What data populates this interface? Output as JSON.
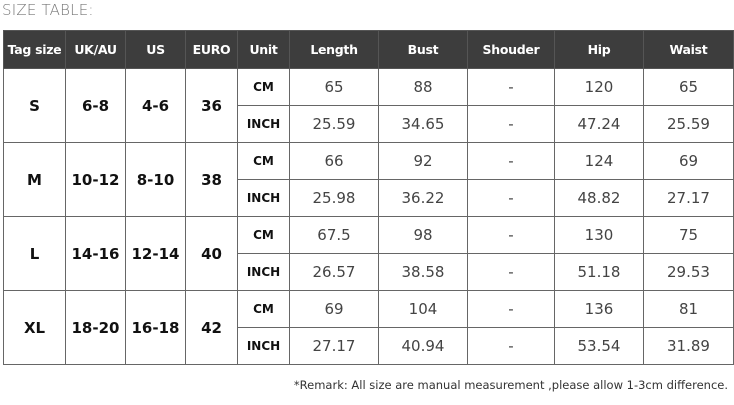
{
  "title": "SIZE TABLE:",
  "header_bg": "#3d3d3d",
  "headers": [
    "Tag size",
    "UK/AU",
    "US",
    "EURO",
    "Unit",
    "Length",
    "Bust",
    "Shouder",
    "Hip",
    "Waist"
  ],
  "rows": [
    {
      "tag": "S",
      "uk": "6-8",
      "us": "4-6",
      "euro": "36",
      "cm": {
        "unit": "CM",
        "length": "65",
        "bust": "88",
        "shoulder": "-",
        "hip": "120",
        "waist": "65"
      },
      "inch": {
        "unit": "INCH",
        "length": "25.59",
        "bust": "34.65",
        "shoulder": "-",
        "hip": "47.24",
        "waist": "25.59"
      }
    },
    {
      "tag": "M",
      "uk": "10-12",
      "us": "8-10",
      "euro": "38",
      "cm": {
        "unit": "CM",
        "length": "66",
        "bust": "92",
        "shoulder": "-",
        "hip": "124",
        "waist": "69"
      },
      "inch": {
        "unit": "INCH",
        "length": "25.98",
        "bust": "36.22",
        "shoulder": "-",
        "hip": "48.82",
        "waist": "27.17"
      }
    },
    {
      "tag": "L",
      "uk": "14-16",
      "us": "12-14",
      "euro": "40",
      "cm": {
        "unit": "CM",
        "length": "67.5",
        "bust": "98",
        "shoulder": "-",
        "hip": "130",
        "waist": "75"
      },
      "inch": {
        "unit": "INCH",
        "length": "26.57",
        "bust": "38.58",
        "shoulder": "-",
        "hip": "51.18",
        "waist": "29.53"
      }
    },
    {
      "tag": "XL",
      "uk": "18-20",
      "us": "16-18",
      "euro": "42",
      "cm": {
        "unit": "CM",
        "length": "69",
        "bust": "104",
        "shoulder": "-",
        "hip": "136",
        "waist": "81"
      },
      "inch": {
        "unit": "INCH",
        "length": "27.17",
        "bust": "40.94",
        "shoulder": "-",
        "hip": "53.54",
        "waist": "31.89"
      }
    }
  ],
  "remark": "*Remark: All size are manual measurement ,please allow 1-3cm difference."
}
